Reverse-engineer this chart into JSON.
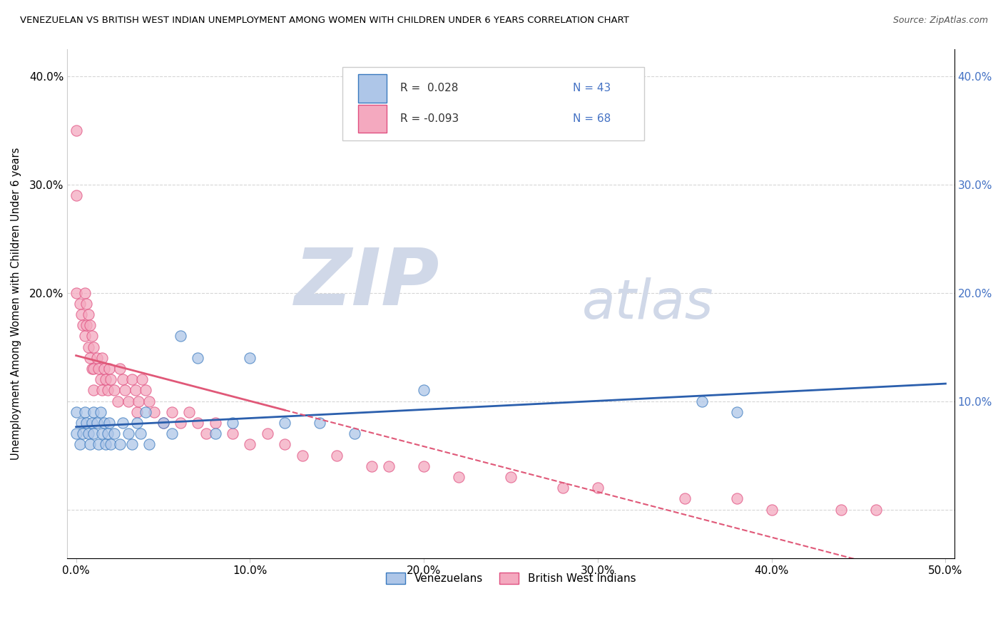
{
  "title": "VENEZUELAN VS BRITISH WEST INDIAN UNEMPLOYMENT AMONG WOMEN WITH CHILDREN UNDER 6 YEARS CORRELATION CHART",
  "source": "Source: ZipAtlas.com",
  "ylabel": "Unemployment Among Women with Children Under 6 years",
  "xlim": [
    -0.005,
    0.505
  ],
  "ylim": [
    -0.045,
    0.425
  ],
  "xticks": [
    0.0,
    0.1,
    0.2,
    0.3,
    0.4,
    0.5
  ],
  "yticks": [
    0.0,
    0.1,
    0.2,
    0.3,
    0.4
  ],
  "xtick_labels": [
    "0.0%",
    "10.0%",
    "20.0%",
    "30.0%",
    "40.0%",
    "50.0%"
  ],
  "ytick_labels_left": [
    "",
    "",
    "20.0%",
    "30.0%",
    "40.0%"
  ],
  "ytick_labels_right": [
    "",
    "10.0%",
    "20.0%",
    "30.0%",
    "40.0%"
  ],
  "legend_labels": [
    "Venezuelans",
    "British West Indians"
  ],
  "legend_r_blue": "R =  0.028",
  "legend_r_pink": "R = -0.093",
  "legend_n_blue": "N = 43",
  "legend_n_pink": "N = 68",
  "blue_fill": "#aec6e8",
  "blue_edge": "#3a7abf",
  "pink_fill": "#f4a9bf",
  "pink_edge": "#e05080",
  "blue_line": "#2b5fad",
  "pink_line": "#e05878",
  "grid_color": "#cccccc",
  "right_axis_color": "#4472c4",
  "watermark_zip_color": "#d0d8e8",
  "watermark_atlas_color": "#d0d8e8",
  "ven_x": [
    0.0,
    0.0,
    0.002,
    0.003,
    0.004,
    0.005,
    0.006,
    0.007,
    0.008,
    0.009,
    0.01,
    0.01,
    0.012,
    0.013,
    0.014,
    0.015,
    0.016,
    0.017,
    0.018,
    0.019,
    0.02,
    0.022,
    0.025,
    0.027,
    0.03,
    0.032,
    0.035,
    0.037,
    0.04,
    0.042,
    0.05,
    0.055,
    0.06,
    0.07,
    0.08,
    0.09,
    0.1,
    0.12,
    0.14,
    0.16,
    0.2,
    0.36,
    0.38
  ],
  "ven_y": [
    0.07,
    0.09,
    0.06,
    0.08,
    0.07,
    0.09,
    0.08,
    0.07,
    0.06,
    0.08,
    0.09,
    0.07,
    0.08,
    0.06,
    0.09,
    0.07,
    0.08,
    0.06,
    0.07,
    0.08,
    0.06,
    0.07,
    0.06,
    0.08,
    0.07,
    0.06,
    0.08,
    0.07,
    0.09,
    0.06,
    0.08,
    0.07,
    0.16,
    0.14,
    0.07,
    0.08,
    0.14,
    0.08,
    0.08,
    0.07,
    0.11,
    0.1,
    0.09
  ],
  "bwi_x": [
    0.0,
    0.0,
    0.0,
    0.002,
    0.003,
    0.004,
    0.005,
    0.005,
    0.006,
    0.006,
    0.007,
    0.007,
    0.008,
    0.008,
    0.009,
    0.009,
    0.01,
    0.01,
    0.01,
    0.012,
    0.013,
    0.014,
    0.015,
    0.015,
    0.016,
    0.017,
    0.018,
    0.019,
    0.02,
    0.022,
    0.024,
    0.025,
    0.027,
    0.028,
    0.03,
    0.032,
    0.034,
    0.035,
    0.036,
    0.038,
    0.04,
    0.042,
    0.045,
    0.05,
    0.055,
    0.06,
    0.065,
    0.07,
    0.075,
    0.08,
    0.09,
    0.1,
    0.11,
    0.12,
    0.13,
    0.15,
    0.17,
    0.18,
    0.2,
    0.22,
    0.25,
    0.28,
    0.3,
    0.35,
    0.38,
    0.4,
    0.44,
    0.46
  ],
  "bwi_y": [
    0.35,
    0.29,
    0.2,
    0.19,
    0.18,
    0.17,
    0.2,
    0.16,
    0.19,
    0.17,
    0.18,
    0.15,
    0.17,
    0.14,
    0.16,
    0.13,
    0.15,
    0.13,
    0.11,
    0.14,
    0.13,
    0.12,
    0.14,
    0.11,
    0.13,
    0.12,
    0.11,
    0.13,
    0.12,
    0.11,
    0.1,
    0.13,
    0.12,
    0.11,
    0.1,
    0.12,
    0.11,
    0.09,
    0.1,
    0.12,
    0.11,
    0.1,
    0.09,
    0.08,
    0.09,
    0.08,
    0.09,
    0.08,
    0.07,
    0.08,
    0.07,
    0.06,
    0.07,
    0.06,
    0.05,
    0.05,
    0.04,
    0.04,
    0.04,
    0.03,
    0.03,
    0.02,
    0.02,
    0.01,
    0.01,
    0.0,
    0.0,
    0.0
  ]
}
